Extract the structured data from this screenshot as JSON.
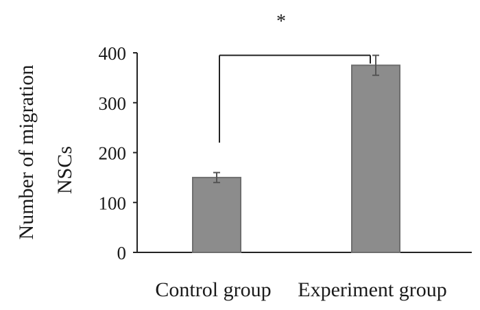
{
  "chart_data": {
    "type": "bar",
    "title": "",
    "ylabel_lines": [
      "Number of migration",
      "NSCs"
    ],
    "xlabel": "",
    "categories": [
      "Control group",
      "Experiment group"
    ],
    "values": [
      150,
      375
    ],
    "errors": [
      10,
      20
    ],
    "ylim": [
      0,
      400
    ],
    "yticks": [
      0,
      100,
      200,
      300,
      400
    ],
    "grid": false,
    "bar_color": "#8c8c8c",
    "bar_edge_color": "#6e6e6e",
    "significance": {
      "label": "*",
      "from": "Control group",
      "to": "Experiment group",
      "bracket_y": 395,
      "left_drop_to": 220
    }
  }
}
